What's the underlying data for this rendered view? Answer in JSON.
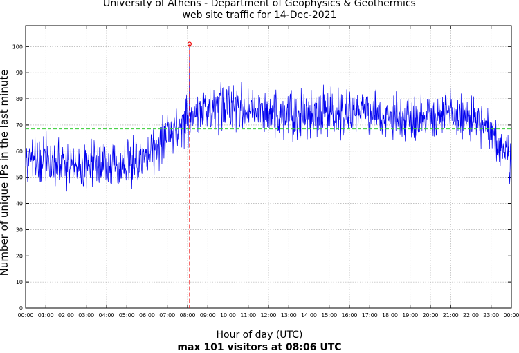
{
  "chart_data": {
    "type": "line",
    "title": "University of Athens - Department of Geophysics & Geothermics",
    "subtitle": "web site traffic for 14-Dec-2021",
    "xlabel": "Hour of day (UTC)",
    "ylabel": "Number of unique IPs in the last minute",
    "footer": "max 101 visitors at 08:06 UTC",
    "xlim": [
      0,
      24
    ],
    "ylim": [
      0,
      108
    ],
    "y_ticks": [
      0,
      10,
      20,
      30,
      40,
      50,
      60,
      70,
      80,
      90,
      100
    ],
    "x_tick_labels": [
      "00:00",
      "01:00",
      "02:00",
      "03:00",
      "04:00",
      "05:00",
      "06:00",
      "07:00",
      "08:00",
      "09:00",
      "10:00",
      "11:00",
      "12:00",
      "13:00",
      "14:00",
      "15:00",
      "16:00",
      "17:00",
      "18:00",
      "19:00",
      "20:00",
      "21:00",
      "22:00",
      "23:00",
      "00:00"
    ],
    "grid": true,
    "mean_line": {
      "value": 68.5,
      "color": "#33cc33",
      "style": "dashed"
    },
    "max_point": {
      "hour": 8.1,
      "value": 101,
      "color": "#ee0000"
    },
    "series": [
      {
        "name": "unique IPs per minute",
        "color": "#0000ee",
        "hourly_mean_x": [
          0,
          0.5,
          1,
          1.5,
          2,
          2.5,
          3,
          3.5,
          4,
          4.5,
          5,
          5.5,
          6,
          6.5,
          7,
          7.5,
          8,
          8.5,
          9,
          9.5,
          10,
          10.5,
          11,
          11.5,
          12,
          12.5,
          13,
          13.5,
          14,
          14.5,
          15,
          15.5,
          16,
          16.5,
          17,
          17.5,
          18,
          18.5,
          19,
          19.5,
          20,
          20.5,
          21,
          21.5,
          22,
          22.5,
          23,
          23.5,
          24
        ],
        "hourly_mean_y": [
          58,
          57,
          56,
          56,
          55,
          55,
          54,
          54,
          55,
          55,
          56,
          56,
          58,
          62,
          66,
          69,
          72,
          74,
          74,
          76,
          78,
          77,
          76,
          75,
          74,
          74,
          74,
          74,
          75,
          74,
          75,
          75,
          75,
          75,
          74,
          74,
          73,
          73,
          73,
          73,
          74,
          74,
          74,
          73,
          72,
          70,
          66,
          62,
          56
        ],
        "spread": 6,
        "samples_per_hour": 60
      }
    ]
  }
}
